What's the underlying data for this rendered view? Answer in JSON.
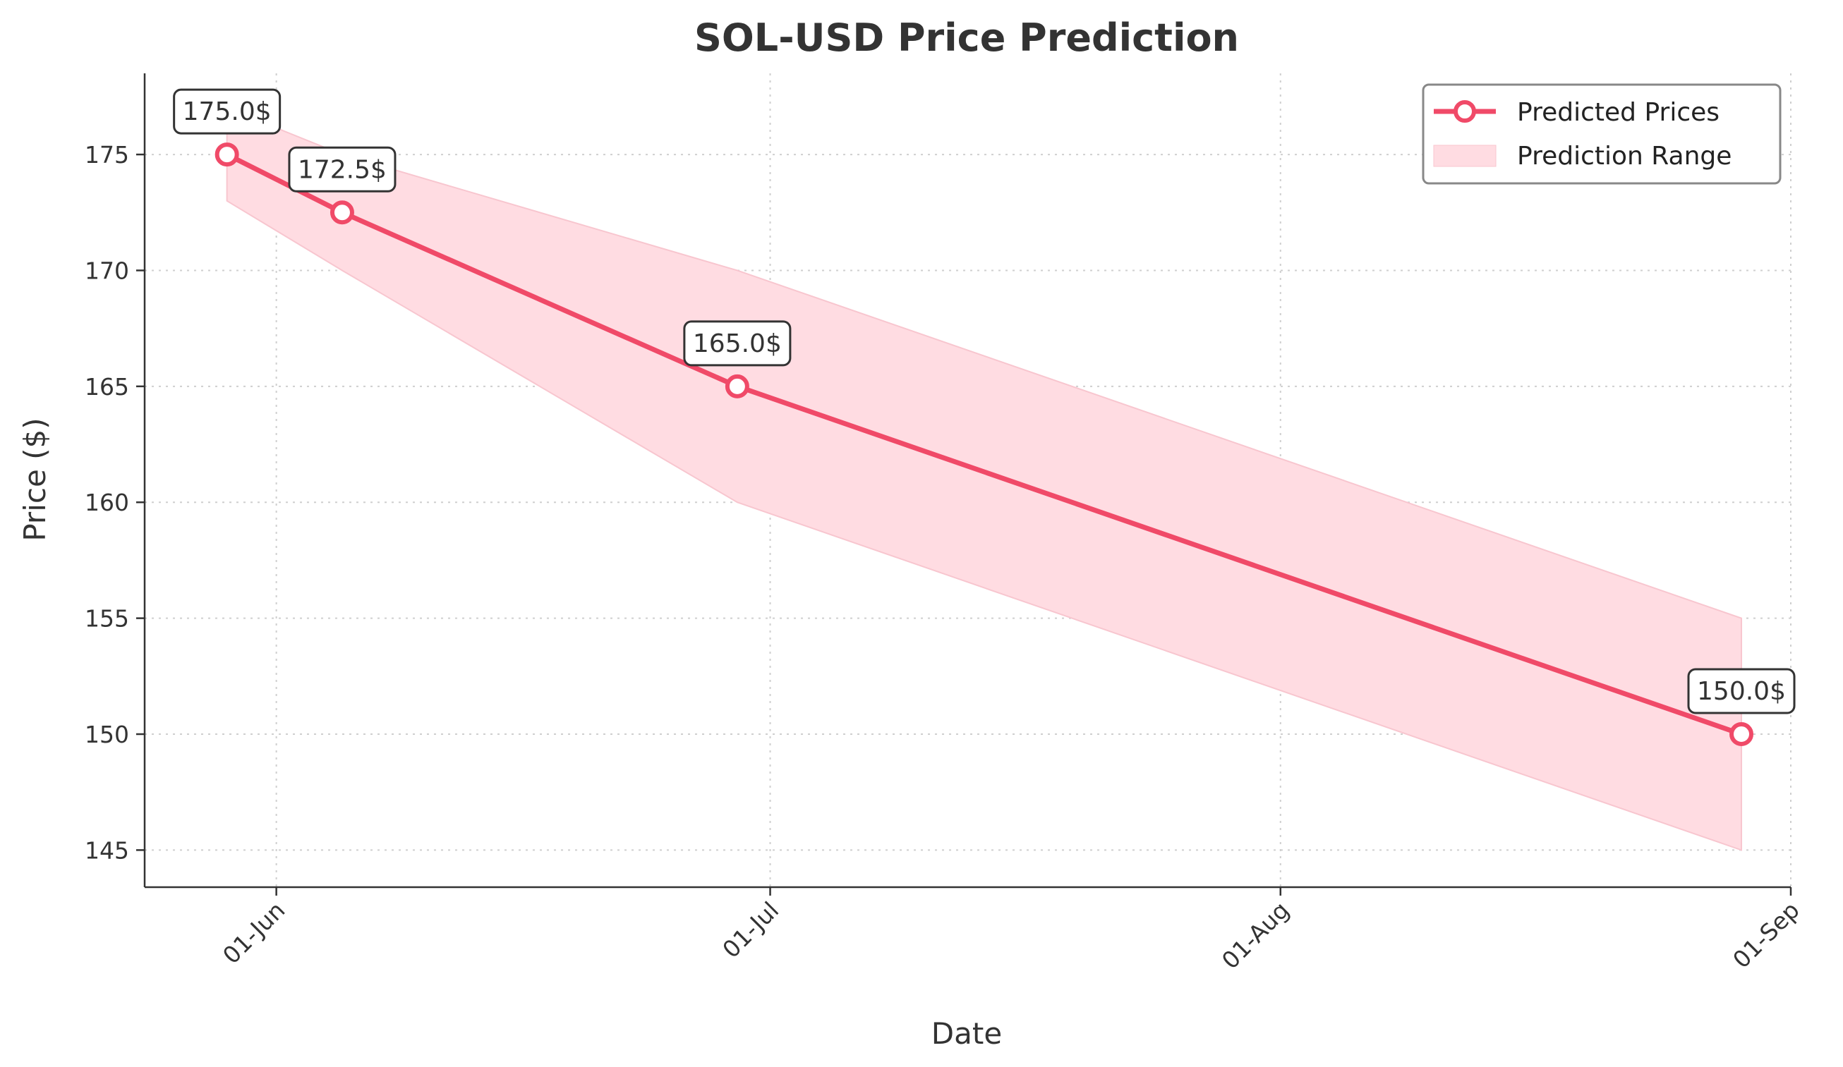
{
  "chart_data": {
    "type": "line",
    "title": "SOL-USD Price Prediction",
    "xlabel": "Date",
    "ylabel": "Price ($)",
    "x_ticks": [
      {
        "date": "2024-06-01",
        "label": "01-Jun"
      },
      {
        "date": "2024-07-01",
        "label": "01-Jul"
      },
      {
        "date": "2024-08-01",
        "label": "01-Aug"
      },
      {
        "date": "2024-09-01",
        "label": "01-Sep"
      }
    ],
    "y_ticks": [
      145,
      150,
      155,
      160,
      165,
      170,
      175
    ],
    "xlim": [
      "2024-05-24",
      "2024-09-01"
    ],
    "ylim": [
      143.4,
      178.5
    ],
    "grid": true,
    "legend_position": "top-right",
    "series": [
      {
        "name": "Predicted Prices",
        "color": "#f04a68",
        "x": [
          "2024-05-29",
          "2024-06-05",
          "2024-06-29",
          "2024-08-29"
        ],
        "values": [
          175.0,
          172.5,
          165.0,
          150.0
        ],
        "labels": [
          "175.0$",
          "172.5$",
          "165.0$",
          "150.0$"
        ]
      },
      {
        "name": "Prediction Range",
        "color": "#ffdce2",
        "x": [
          "2024-05-29",
          "2024-06-05",
          "2024-06-29",
          "2024-08-29"
        ],
        "upper": [
          177.0,
          175.0,
          170.0,
          155.0
        ],
        "lower": [
          173.0,
          170.0,
          160.0,
          145.0
        ]
      }
    ]
  }
}
